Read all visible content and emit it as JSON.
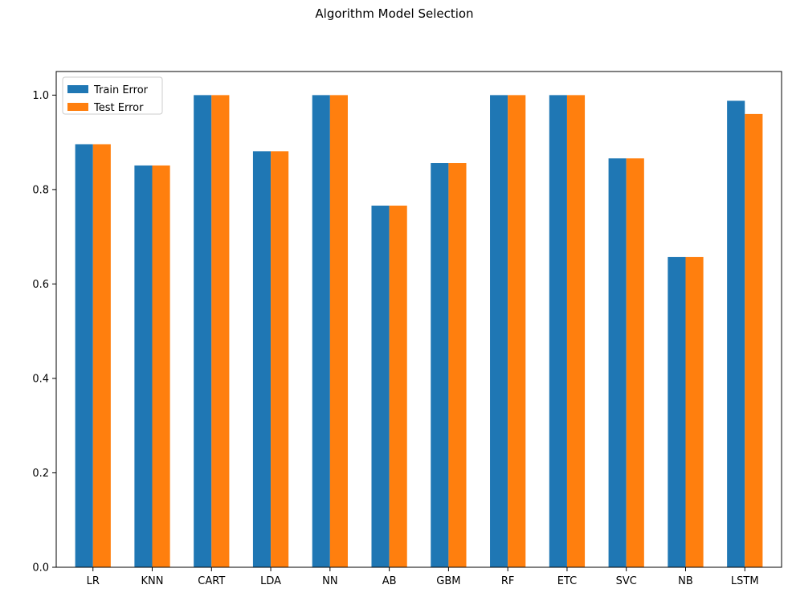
{
  "chart_data": {
    "type": "bar",
    "title": "Algorithm Model Selection",
    "xlabel": "",
    "ylabel": "",
    "categories": [
      "LR",
      "KNN",
      "CART",
      "LDA",
      "NN",
      "AB",
      "GBM",
      "RF",
      "ETC",
      "SVC",
      "NB",
      "LSTM"
    ],
    "series": [
      {
        "name": "Train Error",
        "color": "#1f77b4",
        "values": [
          0.896,
          0.851,
          1.0,
          0.881,
          1.0,
          0.766,
          0.856,
          1.0,
          1.0,
          0.866,
          0.657,
          0.988
        ]
      },
      {
        "name": "Test Error",
        "color": "#ff7f0e",
        "values": [
          0.896,
          0.851,
          1.0,
          0.881,
          1.0,
          0.766,
          0.856,
          1.0,
          1.0,
          0.866,
          0.657,
          0.96
        ]
      }
    ],
    "ylim": [
      0,
      1.05
    ],
    "yticks": [
      "0.0",
      "0.2",
      "0.4",
      "0.6",
      "0.8",
      "1.0"
    ],
    "grid": false,
    "legend_position": "upper-left"
  }
}
